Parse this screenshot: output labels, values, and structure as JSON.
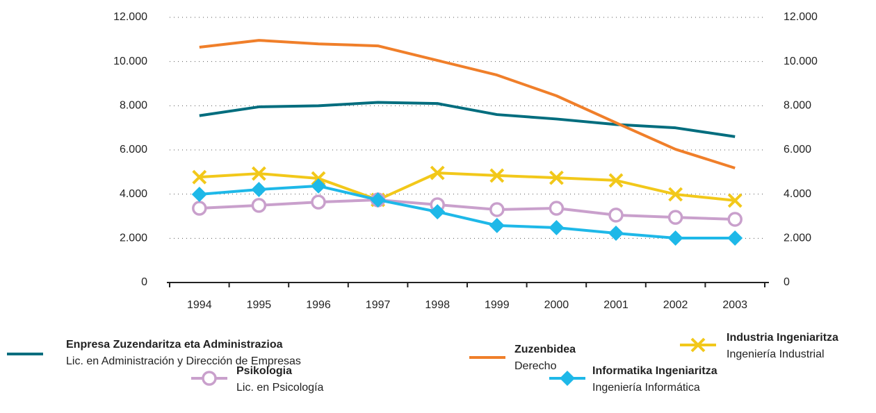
{
  "chart_data": {
    "type": "line",
    "categories": [
      "1994",
      "1995",
      "1996",
      "1997",
      "1998",
      "1999",
      "2000",
      "2001",
      "2002",
      "2003"
    ],
    "ylim": [
      0,
      12000
    ],
    "yticks": [
      0,
      {
        "value": 2000,
        "label": "2.000"
      },
      {
        "value": 4000,
        "label": "4.000"
      },
      {
        "value": 6000,
        "label": "6.000"
      },
      {
        "value": 8000,
        "label": "8.000"
      },
      {
        "value": 10000,
        "label": "10.000"
      },
      {
        "value": 12000,
        "label": "12.000"
      }
    ],
    "grid": true,
    "series": [
      {
        "name": "Enpresa Zuzendaritza eta Administrazioa",
        "subname": "Lic. en Administración y Dirección de Empresas",
        "color": "#006d7e",
        "marker": "none",
        "values": [
          7550,
          7950,
          8000,
          8150,
          8100,
          7600,
          7400,
          7150,
          7000,
          6600
        ]
      },
      {
        "name": "Zuzenbidea",
        "subname": "Derecho",
        "color": "#f07f2a",
        "marker": "none",
        "values": [
          10650,
          10960,
          10800,
          10710,
          10050,
          9390,
          8450,
          7230,
          6030,
          5180
        ]
      },
      {
        "name": "Industria Ingeniaritza",
        "subname": "Ingeniería Industrial",
        "color": "#f2c81a",
        "marker": "x",
        "values": [
          4770,
          4930,
          4710,
          3740,
          4960,
          4840,
          4740,
          4620,
          3990,
          3710
        ]
      },
      {
        "name": "Psikologia",
        "subname": "Lic. en Psicología",
        "color": "#c9a0cc",
        "marker": "circle",
        "values": [
          3360,
          3490,
          3640,
          3740,
          3520,
          3300,
          3360,
          3050,
          2950,
          2860
        ]
      },
      {
        "name": "Informatika Ingeniaritza",
        "subname": "Ingeniería Informática",
        "color": "#1eb8e8",
        "marker": "diamond",
        "values": [
          3990,
          4210,
          4370,
          3740,
          3200,
          2580,
          2480,
          2230,
          2010,
          2010
        ]
      }
    ]
  }
}
